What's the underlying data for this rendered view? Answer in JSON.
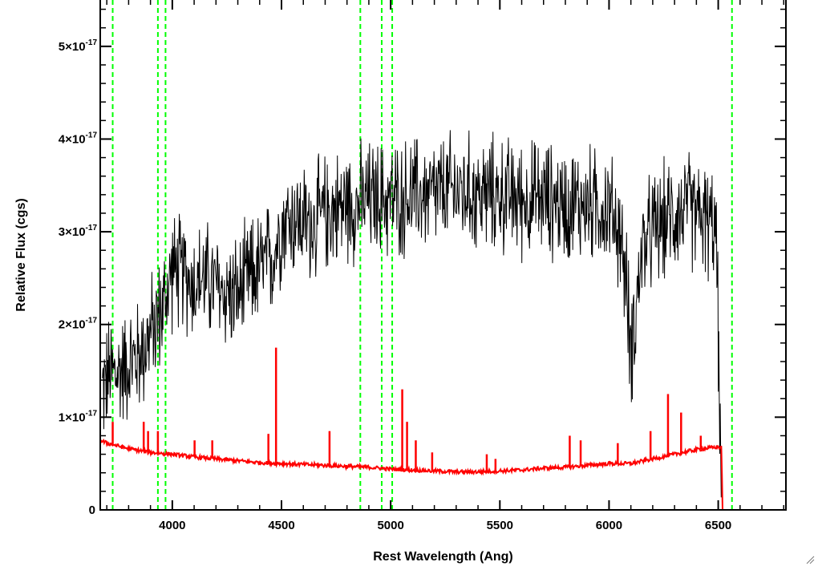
{
  "chart_data": {
    "type": "line",
    "xlabel": "Rest Wavelength (Ang)",
    "ylabel": "Relative Flux (cgs)",
    "xlim": [
      3670,
      6810
    ],
    "ylim": [
      0,
      5.5e-17
    ],
    "x_ticks": [
      {
        "value": 4000,
        "label": "4000"
      },
      {
        "value": 4500,
        "label": "4500"
      },
      {
        "value": 5000,
        "label": "5000"
      },
      {
        "value": 5500,
        "label": "5500"
      },
      {
        "value": 6000,
        "label": "6000"
      },
      {
        "value": 6500,
        "label": "6500"
      }
    ],
    "y_ticks": [
      {
        "value": 0,
        "label": "0"
      },
      {
        "value": 1e-17,
        "label": "1×10",
        "exp": "-17"
      },
      {
        "value": 2e-17,
        "label": "2×10",
        "exp": "-17"
      },
      {
        "value": 3e-17,
        "label": "3×10",
        "exp": "-17"
      },
      {
        "value": 4e-17,
        "label": "4×10",
        "exp": "-17"
      },
      {
        "value": 5e-17,
        "label": "5×10",
        "exp": "-17"
      }
    ],
    "grid": false,
    "series": [
      {
        "name": "",
        "color": "#000000",
        "style": "noisy spectrum",
        "x": [
          3680,
          3700,
          3720,
          3740,
          3760,
          3780,
          3800,
          3820,
          3840,
          3860,
          3880,
          3900,
          3920,
          3940,
          3960,
          3980,
          4000,
          4050,
          4100,
          4150,
          4200,
          4250,
          4300,
          4350,
          4400,
          4450,
          4470,
          4490,
          4500,
          4550,
          4600,
          4650,
          4700,
          4750,
          4800,
          4850,
          4900,
          4950,
          5000,
          5050,
          5100,
          5150,
          5200,
          5300,
          5400,
          5500,
          5600,
          5700,
          5800,
          5900,
          6000,
          6050,
          6080,
          6100,
          6120,
          6150,
          6200,
          6250,
          6300,
          6350,
          6400,
          6450,
          6490,
          6500,
          6510,
          6520
        ],
        "values": [
          1.3e-17,
          1.4e-17,
          1.5e-17,
          1.45e-17,
          1.5e-17,
          1.55e-17,
          1.6e-17,
          1.6e-17,
          1.65e-17,
          1.7e-17,
          1.8e-17,
          1.9e-17,
          2e-17,
          2.1e-17,
          2.2e-17,
          2.4e-17,
          2.6e-17,
          2.55e-17,
          2.45e-17,
          2.5e-17,
          2.4e-17,
          2.35e-17,
          2.3e-17,
          2.5e-17,
          2.6e-17,
          2.7e-17,
          2.8e-17,
          3e-17,
          3.1e-17,
          3.15e-17,
          3.1e-17,
          3.1e-17,
          3.2e-17,
          3.25e-17,
          3.3e-17,
          3.3e-17,
          3.35e-17,
          3.35e-17,
          3.35e-17,
          3.35e-17,
          3.4e-17,
          3.4e-17,
          3.4e-17,
          3.45e-17,
          3.4e-17,
          3.4e-17,
          3.35e-17,
          3.35e-17,
          3.3e-17,
          3.3e-17,
          3.25e-17,
          3e-17,
          2.4e-17,
          1.7e-17,
          2.1e-17,
          2.8e-17,
          3e-17,
          3.1e-17,
          3.2e-17,
          3.25e-17,
          3.2e-17,
          3.1e-17,
          3e-17,
          2e-17,
          5e-18,
          0.0
        ]
      },
      {
        "name": "",
        "color": "#ff0000",
        "style": "model continuum",
        "x": [
          3670,
          3700,
          3800,
          3900,
          4000,
          4100,
          4200,
          4300,
          4400,
          4500,
          4600,
          4700,
          4800,
          4900,
          5000,
          5100,
          5200,
          5300,
          5400,
          5500,
          5600,
          5700,
          5800,
          5900,
          6000,
          6100,
          6200,
          6300,
          6400,
          6500,
          6515,
          6520,
          6810
        ],
        "values": [
          7.5e-18,
          7.2e-18,
          6.6e-18,
          6.2e-18,
          6e-18,
          5.7e-18,
          5.5e-18,
          5.3e-18,
          5.1e-18,
          5e-18,
          4.9e-18,
          4.8e-18,
          4.7e-18,
          4.6e-18,
          4.4e-18,
          4.3e-18,
          4.2e-18,
          4.1e-18,
          4.1e-18,
          4.2e-18,
          4.3e-18,
          4.5e-18,
          4.6e-18,
          4.8e-18,
          5e-18,
          5e-18,
          5.5e-18,
          6e-18,
          6.5e-18,
          6.8e-18,
          6.7e-18,
          0.0,
          0.0
        ]
      }
    ],
    "emission_lines": [
      {
        "x": 3727,
        "peak": 9.5e-18
      },
      {
        "x": 3869,
        "peak": 9.5e-18
      },
      {
        "x": 3889,
        "peak": 8.5e-18
      },
      {
        "x": 3934,
        "peak": 8.5e-18
      },
      {
        "x": 4102,
        "peak": 7.5e-18
      },
      {
        "x": 4183,
        "peak": 7.5e-18
      },
      {
        "x": 4440,
        "peak": 8.2e-18
      },
      {
        "x": 4475,
        "peak": 1.75e-17
      },
      {
        "x": 4720,
        "peak": 8.5e-18
      },
      {
        "x": 5053,
        "peak": 1.3e-17
      },
      {
        "x": 5075,
        "peak": 9.5e-18
      },
      {
        "x": 5115,
        "peak": 7.5e-18
      },
      {
        "x": 5190,
        "peak": 6.2e-18
      },
      {
        "x": 5440,
        "peak": 6e-18
      },
      {
        "x": 5480,
        "peak": 5.5e-18
      },
      {
        "x": 5820,
        "peak": 8e-18
      },
      {
        "x": 5870,
        "peak": 7.5e-18
      },
      {
        "x": 6040,
        "peak": 7.2e-18
      },
      {
        "x": 6190,
        "peak": 8.5e-18
      },
      {
        "x": 6270,
        "peak": 1.25e-17
      },
      {
        "x": 6330,
        "peak": 1.05e-17
      },
      {
        "x": 6420,
        "peak": 8e-18
      }
    ],
    "vertical_dashed_lines": {
      "color": "#00ff00",
      "x": [
        3727,
        3934,
        3969,
        4861,
        4959,
        5007,
        6563
      ]
    }
  }
}
